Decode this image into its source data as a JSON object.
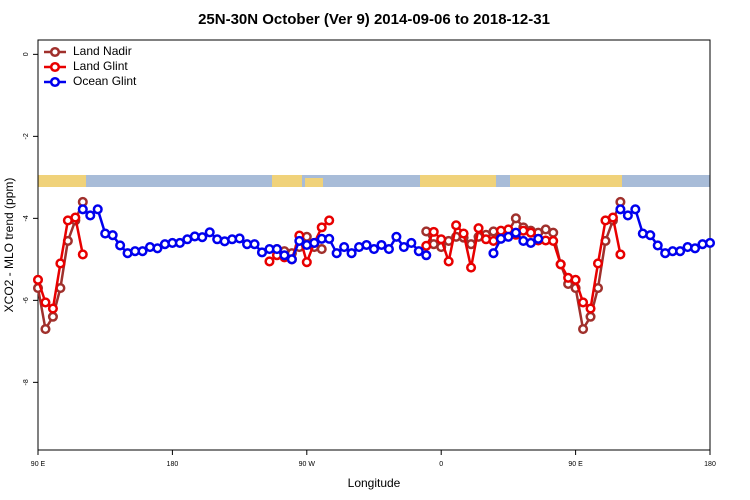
{
  "chart_data": {
    "type": "line",
    "title": "25N-30N October (Ver 9)   2014-09-06 to 2018-12-31",
    "x_label": "Longitude",
    "y_label": "XCO2 - MLO trend (ppm)",
    "x": [
      90,
      95,
      100,
      105,
      110,
      115,
      120,
      125,
      130,
      135,
      140,
      145,
      150,
      155,
      160,
      165,
      170,
      175,
      180,
      185,
      190,
      195,
      200,
      205,
      210,
      215,
      220,
      225,
      230,
      235,
      240,
      245,
      250,
      255,
      260,
      265,
      270,
      275,
      280,
      285,
      290,
      295,
      300,
      305,
      310,
      315,
      320,
      325,
      330,
      335,
      340,
      345,
      350,
      355,
      360,
      365,
      370,
      375,
      380,
      385,
      390,
      395,
      400,
      405,
      410,
      415,
      420,
      425,
      430,
      435,
      440,
      445,
      450,
      455,
      460,
      465,
      470,
      475,
      480,
      485,
      490,
      495,
      500,
      505,
      510,
      515,
      520,
      525,
      530,
      535,
      540
    ],
    "xlim": [
      90,
      540
    ],
    "xticks": [
      {
        "value": 90,
        "label": "90 E"
      },
      180,
      {
        "value": 270,
        "label": "90 W"
      },
      {
        "value": 360,
        "label": "0"
      },
      {
        "value": 450,
        "label": "90 E"
      },
      {
        "value": 540,
        "label": "180"
      }
    ],
    "ylim": [
      -9.65,
      0.35
    ],
    "yticks": [
      0,
      -2,
      -4,
      -6,
      -8
    ],
    "legend": "top-left",
    "series": [
      {
        "name": "Land Nadir",
        "color": "#a0302c",
        "values": [
          -5.7,
          -6.7,
          -6.4,
          -5.7,
          -4.55,
          -4.05,
          -3.6,
          null,
          null,
          null,
          null,
          null,
          null,
          null,
          null,
          null,
          null,
          null,
          null,
          null,
          null,
          null,
          null,
          null,
          null,
          null,
          null,
          null,
          null,
          null,
          null,
          null,
          -4.75,
          -4.8,
          -4.85,
          -4.7,
          -4.45,
          -4.7,
          -4.75,
          null,
          null,
          null,
          null,
          null,
          null,
          null,
          null,
          null,
          null,
          null,
          null,
          null,
          -4.32,
          -4.63,
          -4.7,
          -4.55,
          -4.45,
          -4.47,
          -4.63,
          -4.45,
          -4.4,
          -4.32,
          -4.42,
          -4.32,
          -4.0,
          -4.22,
          -4.3,
          -4.35,
          -4.27,
          -4.35,
          -5.12,
          -5.6,
          -5.7,
          -6.7,
          -6.4,
          -5.7,
          -4.55,
          -4.05,
          -3.6,
          null,
          null,
          null,
          null,
          null,
          null,
          null,
          null,
          null,
          null,
          null,
          null
        ]
      },
      {
        "name": "Land Glint",
        "color": "#e80000",
        "values": [
          -5.5,
          -6.05,
          -6.2,
          -5.1,
          -4.05,
          -3.98,
          -4.88,
          null,
          null,
          null,
          null,
          null,
          null,
          null,
          null,
          null,
          null,
          null,
          null,
          null,
          null,
          null,
          null,
          null,
          null,
          null,
          null,
          null,
          null,
          null,
          null,
          -5.05,
          -4.9,
          -4.95,
          -5.0,
          -4.42,
          -5.07,
          -4.6,
          -4.22,
          -4.05,
          null,
          null,
          null,
          null,
          null,
          null,
          null,
          null,
          null,
          null,
          null,
          null,
          -4.67,
          -4.33,
          -4.51,
          -5.05,
          -4.17,
          -4.37,
          -5.2,
          -4.24,
          -4.51,
          -4.55,
          -4.3,
          -4.27,
          -4.4,
          -4.3,
          -4.35,
          -4.54,
          -4.54,
          -4.55,
          -5.12,
          -5.45,
          -5.5,
          -6.05,
          -6.2,
          -5.1,
          -4.05,
          -3.98,
          -4.88,
          null,
          null,
          null,
          null,
          null,
          null,
          null,
          null,
          null,
          null,
          null,
          null
        ]
      },
      {
        "name": "Ocean Glint",
        "color": "#0000ee",
        "values": [
          null,
          null,
          null,
          null,
          null,
          null,
          -3.78,
          -3.93,
          -3.78,
          -4.37,
          -4.41,
          -4.66,
          -4.85,
          -4.8,
          -4.8,
          -4.7,
          -4.73,
          -4.63,
          -4.6,
          -4.6,
          -4.51,
          -4.44,
          -4.46,
          -4.34,
          -4.51,
          -4.56,
          -4.51,
          -4.49,
          -4.63,
          -4.63,
          -4.83,
          -4.75,
          -4.75,
          -4.9,
          -5.0,
          -4.55,
          -4.65,
          -4.6,
          -4.5,
          -4.5,
          -4.85,
          -4.7,
          -4.85,
          -4.7,
          -4.65,
          -4.75,
          -4.65,
          -4.75,
          -4.45,
          -4.7,
          -4.6,
          -4.8,
          -4.9,
          null,
          null,
          null,
          null,
          null,
          null,
          null,
          null,
          -4.85,
          -4.5,
          -4.45,
          -4.35,
          -4.55,
          -4.6,
          -4.5,
          null,
          null,
          null,
          null,
          null,
          null,
          null,
          null,
          null,
          null,
          -3.78,
          -3.93,
          -3.78,
          -4.37,
          -4.41,
          -4.66,
          -4.85,
          -4.8,
          -4.8,
          -4.7,
          -4.73,
          -4.63,
          -4.6
        ]
      }
    ]
  }
}
